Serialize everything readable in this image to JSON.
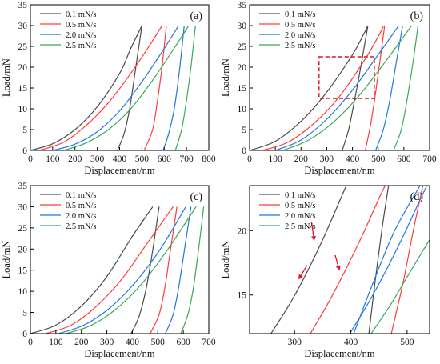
{
  "colors": {
    "0.1": "#4a4a4a",
    "0.5": "#ff3b3b",
    "2.0": "#1f77e0",
    "2.5": "#3aa85a",
    "roi": "#e0121b"
  },
  "chart_data": [
    {
      "type": "line",
      "panel_label": "(a)",
      "xlabel": "Displacement/nm",
      "ylabel": "Load/mN",
      "xlim": [
        0,
        800
      ],
      "ylim": [
        0,
        35
      ],
      "xticks": [
        "0",
        "100",
        "200",
        "300",
        "400",
        "500",
        "600",
        "700",
        "800"
      ],
      "yticks": [
        "0",
        "5",
        "10",
        "15",
        "20",
        "25",
        "30",
        "35"
      ],
      "legend": "top-left",
      "series": [
        {
          "name": "0.1 mN/s",
          "color_key": "0.1",
          "loading": [
            [
              0,
              0
            ],
            [
              100,
              1.6
            ],
            [
              200,
              5
            ],
            [
              300,
              10.5
            ],
            [
              400,
              18.5
            ],
            [
              450,
              24.5
            ],
            [
              500,
              30
            ]
          ],
          "unloading": [
            [
              500,
              30
            ],
            [
              470,
              19
            ],
            [
              445,
              10
            ],
            [
              420,
              4
            ],
            [
              390,
              0
            ]
          ]
        },
        {
          "name": "0.5 mN/s",
          "color_key": "0.5",
          "loading": [
            [
              40,
              0
            ],
            [
              150,
              2
            ],
            [
              250,
              6
            ],
            [
              350,
              11.5
            ],
            [
              450,
              18.5
            ],
            [
              550,
              26.5
            ],
            [
              590,
              30
            ]
          ],
          "unloading": [
            [
              610,
              30
            ],
            [
              590,
              20
            ],
            [
              570,
              12
            ],
            [
              548,
              5
            ],
            [
              510,
              0
            ]
          ]
        },
        {
          "name": "2.0 mN/s",
          "color_key": "2.0",
          "loading": [
            [
              100,
              0
            ],
            [
              200,
              1.5
            ],
            [
              300,
              4.5
            ],
            [
              400,
              9.5
            ],
            [
              500,
              16.5
            ],
            [
              600,
              24.5
            ],
            [
              665,
              30
            ]
          ],
          "unloading": [
            [
              690,
              30
            ],
            [
              668,
              19
            ],
            [
              645,
              10
            ],
            [
              620,
              4
            ],
            [
              595,
              0
            ]
          ]
        },
        {
          "name": "2.5 mN/s",
          "color_key": "2.5",
          "loading": [
            [
              150,
              0
            ],
            [
              250,
              1.8
            ],
            [
              350,
              5
            ],
            [
              450,
              10
            ],
            [
              550,
              17
            ],
            [
              650,
              25
            ],
            [
              710,
              30
            ]
          ],
          "unloading": [
            [
              740,
              30
            ],
            [
              722,
              21
            ],
            [
              700,
              12
            ],
            [
              678,
              5
            ],
            [
              650,
              0
            ]
          ]
        }
      ]
    },
    {
      "type": "line",
      "panel_label": "(b)",
      "xlabel": "Displacement/nm",
      "ylabel": "Load/mN",
      "xlim": [
        0,
        700
      ],
      "ylim": [
        0,
        35
      ],
      "xticks": [
        "0",
        "100",
        "200",
        "300",
        "400",
        "500",
        "600",
        "700"
      ],
      "yticks": [
        "0",
        "5",
        "10",
        "15",
        "20",
        "25",
        "30",
        "35"
      ],
      "legend": "top-left",
      "highlight_box": {
        "x": [
          270,
          485
        ],
        "y": [
          12.5,
          22.5
        ]
      },
      "series": [
        {
          "name": "0.1 mN/s",
          "color_key": "0.1",
          "loading": [
            [
              0,
              0
            ],
            [
              100,
              2.2
            ],
            [
              200,
              7
            ],
            [
              300,
              14
            ],
            [
              400,
              23
            ],
            [
              440,
              27.5
            ],
            [
              460,
              30
            ]
          ],
          "unloading": [
            [
              460,
              30
            ],
            [
              432,
              20
            ],
            [
              408,
              12
            ],
            [
              385,
              5
            ],
            [
              360,
              0
            ]
          ]
        },
        {
          "name": "0.5 mN/s",
          "color_key": "0.5",
          "loading": [
            [
              50,
              0
            ],
            [
              150,
              2
            ],
            [
              250,
              6.5
            ],
            [
              350,
              13
            ],
            [
              450,
              22
            ],
            [
              510,
              28.5
            ],
            [
              520,
              30
            ]
          ],
          "unloading": [
            [
              525,
              30
            ],
            [
              506,
              21
            ],
            [
              488,
              13
            ],
            [
              470,
              6
            ],
            [
              450,
              0
            ]
          ]
        },
        {
          "name": "2.0 mN/s",
          "color_key": "2.0",
          "loading": [
            [
              100,
              0
            ],
            [
              200,
              2.5
            ],
            [
              300,
              7.5
            ],
            [
              400,
              14.5
            ],
            [
              500,
              23
            ],
            [
              580,
              30
            ]
          ],
          "unloading": [
            [
              595,
              30
            ],
            [
              570,
              21
            ],
            [
              545,
              12
            ],
            [
              520,
              5
            ],
            [
              490,
              0
            ]
          ]
        },
        {
          "name": "2.5 mN/s",
          "color_key": "2.5",
          "loading": [
            [
              130,
              0
            ],
            [
              230,
              2.5
            ],
            [
              330,
              7
            ],
            [
              430,
              13.5
            ],
            [
              530,
              21.5
            ],
            [
              630,
              30
            ]
          ],
          "unloading": [
            [
              655,
              30
            ],
            [
              635,
              21
            ],
            [
              612,
              12
            ],
            [
              590,
              5
            ],
            [
              560,
              0
            ]
          ]
        }
      ]
    },
    {
      "type": "line",
      "panel_label": "(c)",
      "xlabel": "Displacement/nm",
      "ylabel": "Load/mN",
      "xlim": [
        0,
        700
      ],
      "ylim": [
        0,
        35
      ],
      "xticks": [
        "0",
        "100",
        "200",
        "300",
        "400",
        "500",
        "600",
        "700"
      ],
      "yticks": [
        "0",
        "5",
        "10",
        "15",
        "20",
        "25",
        "30",
        "35"
      ],
      "legend": "top-left",
      "series": [
        {
          "name": "0.1 mN/s",
          "color_key": "0.1",
          "loading": [
            [
              0,
              0
            ],
            [
              100,
              2
            ],
            [
              200,
              6.5
            ],
            [
              300,
              13.5
            ],
            [
              400,
              23
            ],
            [
              480,
              30
            ]
          ],
          "unloading": [
            [
              505,
              30
            ],
            [
              478,
              19
            ],
            [
              452,
              10
            ],
            [
              426,
              4
            ],
            [
              395,
              0
            ]
          ]
        },
        {
          "name": "0.5 mN/s",
          "color_key": "0.5",
          "loading": [
            [
              60,
              0
            ],
            [
              160,
              2
            ],
            [
              260,
              6.5
            ],
            [
              360,
              13
            ],
            [
              460,
              21.5
            ],
            [
              560,
              30
            ]
          ],
          "unloading": [
            [
              575,
              30
            ],
            [
              550,
              20
            ],
            [
              528,
              11
            ],
            [
              505,
              4.5
            ],
            [
              470,
              0
            ]
          ]
        },
        {
          "name": "2.0 mN/s",
          "color_key": "2.0",
          "loading": [
            [
              110,
              0
            ],
            [
              210,
              2
            ],
            [
              310,
              6
            ],
            [
              410,
              12
            ],
            [
              510,
              20
            ],
            [
              610,
              30
            ]
          ],
          "unloading": [
            [
              630,
              30
            ],
            [
              605,
              20
            ],
            [
              582,
              11
            ],
            [
              560,
              4.5
            ],
            [
              530,
              0
            ]
          ]
        },
        {
          "name": "2.5 mN/s",
          "color_key": "2.5",
          "loading": [
            [
              140,
              0
            ],
            [
              240,
              2
            ],
            [
              340,
              6
            ],
            [
              440,
              12
            ],
            [
              540,
              20
            ],
            [
              650,
              30
            ]
          ],
          "unloading": [
            [
              680,
              30
            ],
            [
              660,
              20
            ],
            [
              640,
              11
            ],
            [
              618,
              4.5
            ],
            [
              590,
              0
            ]
          ]
        }
      ]
    },
    {
      "type": "line",
      "panel_label": "(d)",
      "xlabel": "Displacement/nm",
      "ylabel": "Load/mN",
      "xlim": [
        220,
        540
      ],
      "ylim": [
        12,
        23.5
      ],
      "xticks": [
        "300",
        "400",
        "500"
      ],
      "yticks": [
        "15",
        "20"
      ],
      "legend": "top-left",
      "arrows": [
        {
          "tip": [
            307,
            16.2
          ],
          "tail": [
            322,
            17.3
          ]
        },
        {
          "tip": [
            335,
            19.2
          ],
          "tail": [
            330,
            20.7
          ]
        },
        {
          "tip": [
            380,
            16.9
          ],
          "tail": [
            372,
            18.1
          ]
        }
      ],
      "series": [
        {
          "name": "0.1 mN/s",
          "color_key": "0.1",
          "loading": [
            [
              258,
              12
            ],
            [
              290,
              14.2
            ],
            [
              320,
              16.6
            ],
            [
              350,
              19.3
            ],
            [
              380,
              22.3
            ],
            [
              392,
              23.5
            ]
          ],
          "unloading": [
            [
              467,
              23.5
            ],
            [
              455,
              20
            ],
            [
              443,
              16
            ],
            [
              432,
              12
            ]
          ]
        },
        {
          "name": "0.5 mN/s",
          "color_key": "0.5",
          "loading": [
            [
              328,
              12
            ],
            [
              360,
              14.4
            ],
            [
              390,
              16.9
            ],
            [
              420,
              19.6
            ],
            [
              450,
              22.5
            ],
            [
              461,
              23.5
            ]
          ],
          "unloading": [
            [
              528,
              23.5
            ],
            [
              511,
              20
            ],
            [
              493,
              16
            ],
            [
              472,
              12
            ]
          ]
        },
        {
          "name": "2.0 mN/s",
          "color_key": "2.0",
          "loading": [
            [
              398,
              12
            ],
            [
              430,
              14.3
            ],
            [
              460,
              16.7
            ],
            [
              490,
              19.3
            ],
            [
              520,
              22.1
            ],
            [
              535,
              23.5
            ]
          ],
          "unloading": [
            [
              523,
              23.5
            ],
            [
              478,
              20
            ],
            [
              440,
              16
            ],
            [
              405,
              12
            ]
          ]
        },
        {
          "name": "2.5 mN/s",
          "color_key": "2.5",
          "loading": [
            [
              436,
              12
            ],
            [
              470,
              14.2
            ],
            [
              500,
              16.4
            ],
            [
              540,
              19.3
            ]
          ],
          "unloading": []
        }
      ]
    }
  ]
}
